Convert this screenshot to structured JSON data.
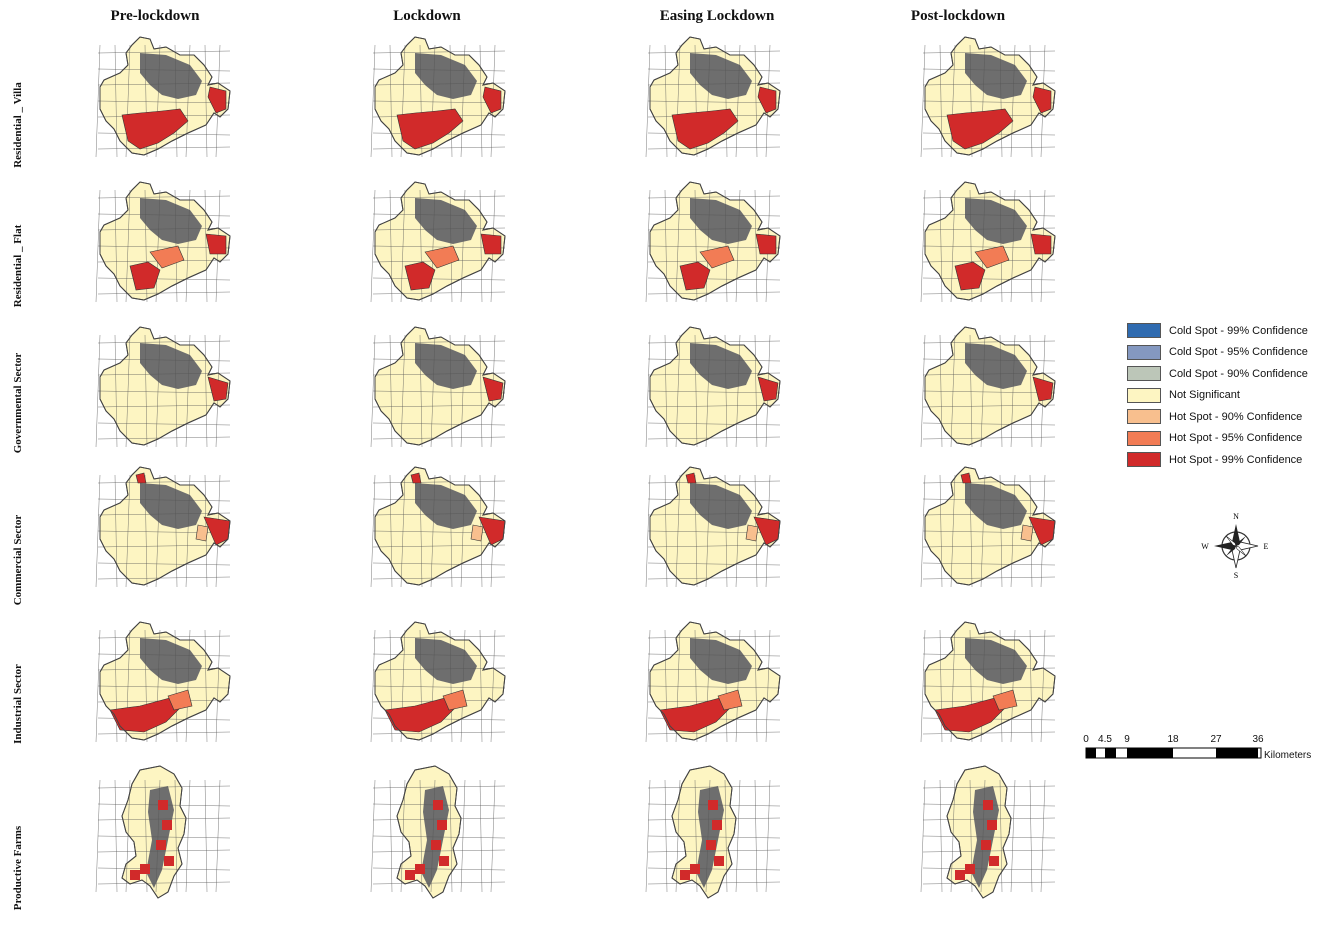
{
  "columns": [
    "Pre-lockdown",
    "Lockdown",
    "Easing Lockdown",
    "Post-lockdown"
  ],
  "rows": [
    "Residential _ Villa",
    "Residential _ Flat",
    "Governmental Sector",
    "Commercial Sector",
    "Industrial Sector",
    "Productive Farms"
  ],
  "legend": [
    {
      "label": "Cold Spot - 99% Confidence",
      "color": "#2f6bb0"
    },
    {
      "label": "Cold Spot - 95% Confidence",
      "color": "#8498c0"
    },
    {
      "label": "Cold Spot - 90% Confidence",
      "color": "#bcc6b8"
    },
    {
      "label": "Not Significant",
      "color": "#fdf5c2"
    },
    {
      "label": "Hot Spot - 90% Confidence",
      "color": "#f8bf8e"
    },
    {
      "label": "Hot Spot - 95% Confidence",
      "color": "#f27c55"
    },
    {
      "label": "Hot Spot - 99% Confidence",
      "color": "#d12a2a"
    }
  ],
  "compass": {
    "n": "N",
    "s": "S",
    "e": "E",
    "w": "W"
  },
  "scale": {
    "ticks": [
      "0",
      "4.5",
      "9",
      "18",
      "27",
      "36"
    ],
    "unit": "Kilometers"
  }
}
